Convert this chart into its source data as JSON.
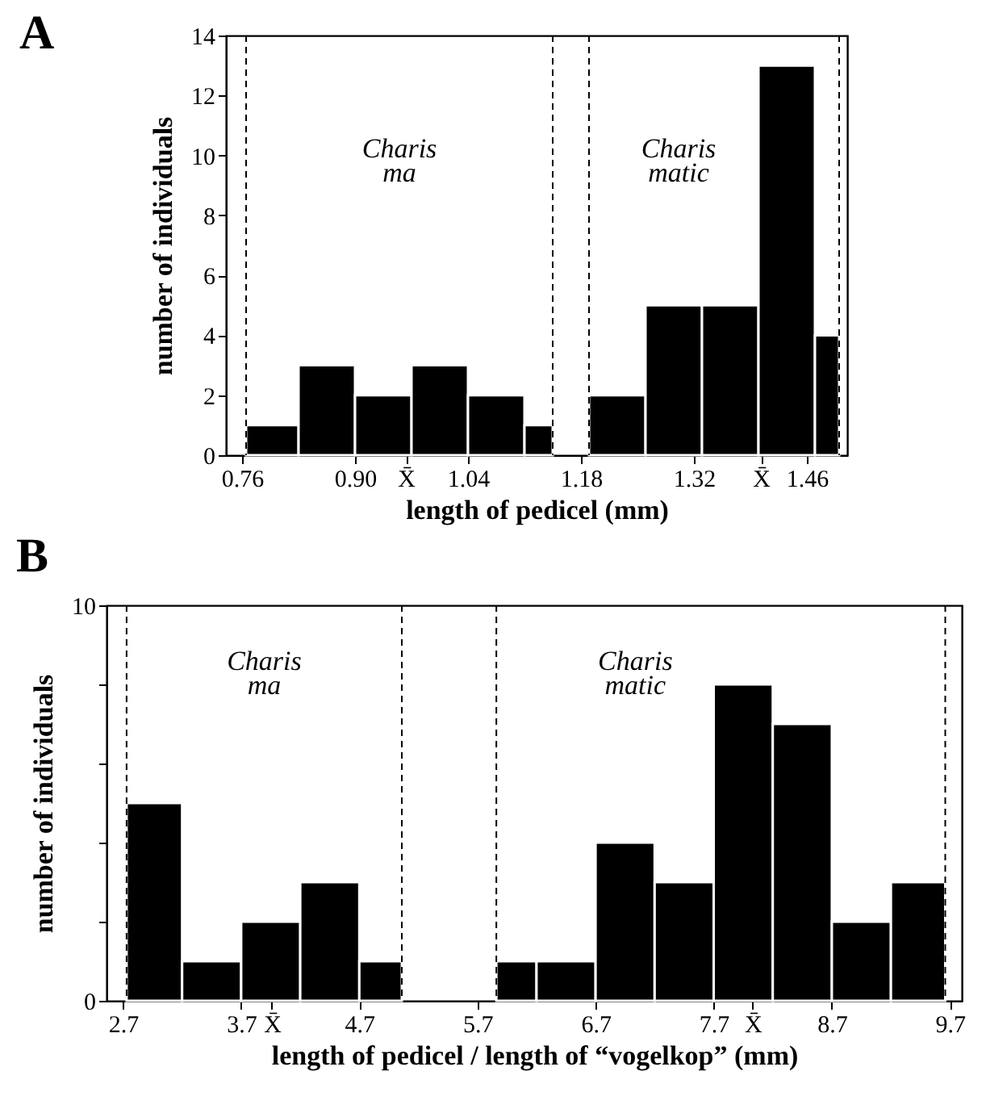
{
  "chart_data": [
    {
      "type": "histogram",
      "title": "A",
      "xlabel": "length of pedicel (mm)",
      "ylabel": "number of individuals",
      "color": "#000000",
      "bins": [
        0.765,
        0.83,
        0.9,
        0.97,
        1.04,
        1.11,
        1.145,
        1.19,
        1.26,
        1.33,
        1.4,
        1.47,
        1.5
      ],
      "values": [
        1,
        3,
        2,
        3,
        2,
        1,
        0,
        2,
        5,
        5,
        13,
        4
      ],
      "xlim": [
        0.74,
        1.51
      ],
      "ylim": [
        0,
        14
      ],
      "xticks": [
        0.76,
        {
          "value": 0.9,
          "label": "0.90"
        },
        {
          "value": 0.963,
          "label": "X̄"
        },
        1.04,
        1.18,
        1.32,
        {
          "value": 1.403,
          "label": "X̄"
        },
        1.46
      ],
      "yticks": [
        0,
        2,
        4,
        6,
        8,
        10,
        12,
        14
      ],
      "ref_lines": [
        {
          "axis": "x",
          "value": 0.765,
          "line_style": "dashed"
        },
        {
          "axis": "x",
          "value": 1.145,
          "line_style": "dashed"
        },
        {
          "axis": "x",
          "value": 1.19,
          "line_style": "dashed"
        },
        {
          "axis": "x",
          "value": 1.5,
          "line_style": "dashed"
        }
      ],
      "annotations": [
        "Charis ma",
        "Charis matic"
      ]
    },
    {
      "type": "histogram",
      "title": "B",
      "xlabel": "length of pedicel / length of “vogelkop” (mm)",
      "ylabel": "number of individuals",
      "color": "#000000",
      "bins": [
        2.73,
        3.2,
        3.7,
        4.2,
        4.7,
        5.06,
        5.86,
        6.2,
        6.7,
        7.2,
        7.7,
        8.2,
        8.7,
        9.2,
        9.66
      ],
      "values": [
        5,
        1,
        2,
        3,
        1,
        0,
        1,
        1,
        4,
        3,
        8,
        7,
        2,
        3
      ],
      "xlim": [
        2.56,
        9.8
      ],
      "ylim": [
        0,
        10
      ],
      "xticks": [
        2.7,
        3.7,
        {
          "value": 3.96,
          "label": "X̄"
        },
        4.7,
        5.7,
        6.7,
        7.7,
        {
          "value": 8.03,
          "label": "X̄"
        },
        8.7,
        9.7
      ],
      "yticks": [
        0,
        {
          "value": 2,
          "label": null
        },
        {
          "value": 4,
          "label": null
        },
        {
          "value": 6,
          "label": null
        },
        {
          "value": 8,
          "label": null
        },
        10
      ],
      "ref_lines": [
        {
          "axis": "x",
          "value": 2.73,
          "line_style": "dashed"
        },
        {
          "axis": "x",
          "value": 5.06,
          "line_style": "dashed"
        },
        {
          "axis": "x",
          "value": 5.86,
          "line_style": "dashed"
        },
        {
          "axis": "x",
          "value": 9.66,
          "line_style": "dashed"
        }
      ],
      "annotations": [
        "Charis ma",
        "Charis matic"
      ]
    }
  ]
}
